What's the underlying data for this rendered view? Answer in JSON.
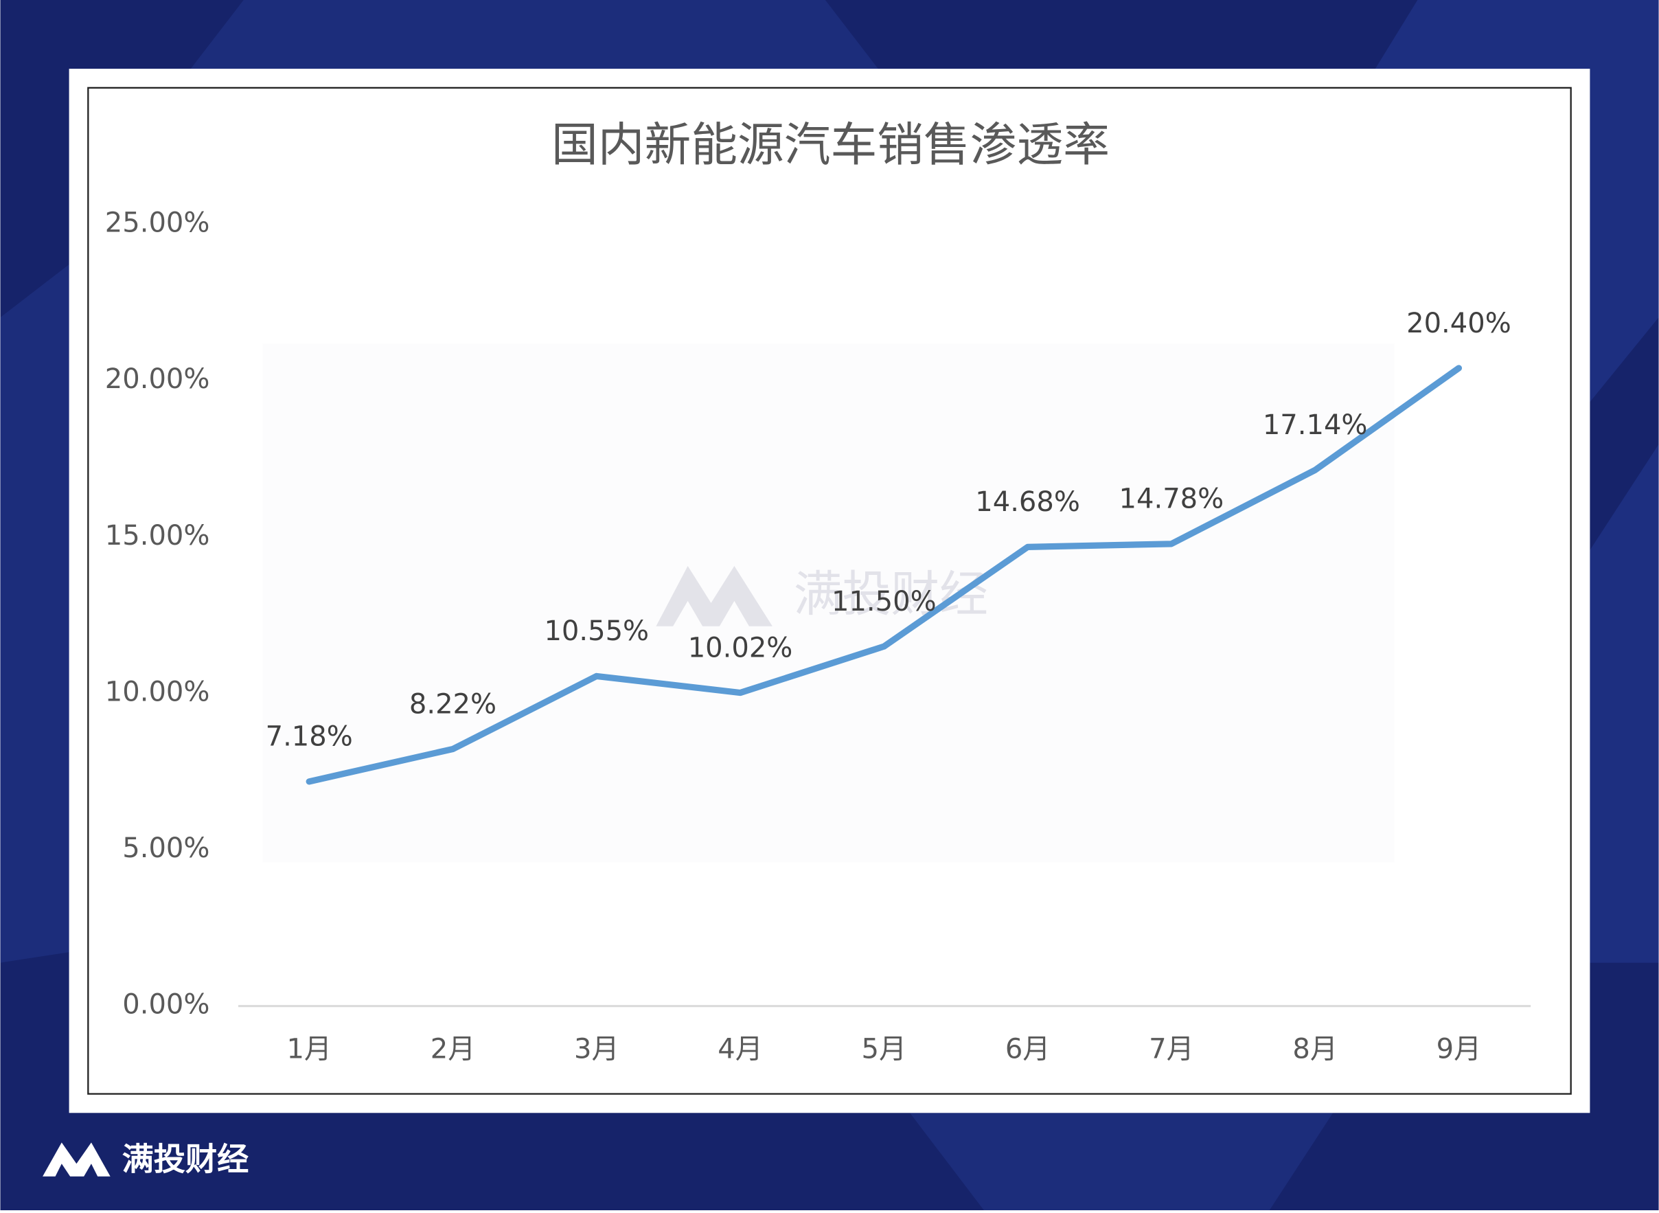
{
  "chart_data": {
    "type": "line",
    "title": "国内新能源汽车销售渗透率",
    "categories": [
      "1月",
      "2月",
      "3月",
      "4月",
      "5月",
      "6月",
      "7月",
      "8月",
      "9月"
    ],
    "values": [
      7.18,
      8.22,
      10.55,
      10.02,
      11.5,
      14.68,
      14.78,
      17.14,
      20.4
    ],
    "value_labels": [
      "7.18%",
      "8.22%",
      "10.55%",
      "10.02%",
      "11.50%",
      "14.68%",
      "14.78%",
      "17.14%",
      "20.40%"
    ],
    "color": "#5b9bd5",
    "ylim": [
      0,
      25
    ],
    "yticks": [
      {
        "value": 0,
        "label": "0.00%"
      },
      {
        "value": 5,
        "label": "5.00%"
      },
      {
        "value": 10,
        "label": "10.00%"
      },
      {
        "value": 15,
        "label": "15.00%"
      },
      {
        "value": 20,
        "label": "20.00%"
      },
      {
        "value": 25,
        "label": "25.00%"
      }
    ],
    "grid": false,
    "watermark": "满投财经"
  },
  "brand": "满投财经"
}
